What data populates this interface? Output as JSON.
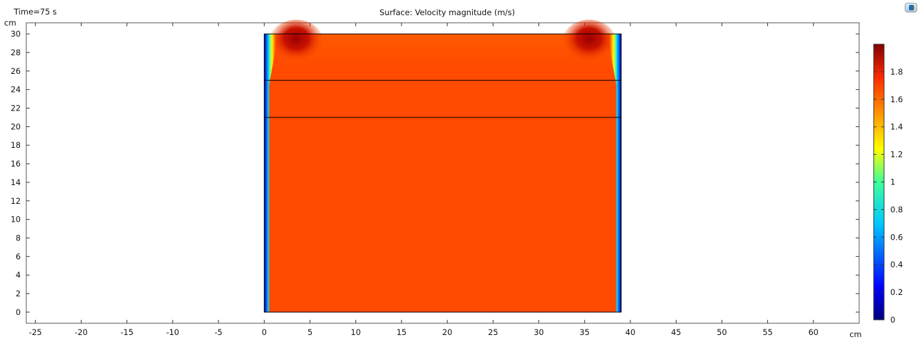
{
  "window": {
    "time_label": "Time=75 s",
    "corner_icon": "graphics-toolbar-icon"
  },
  "chart_data": {
    "type": "heatmap",
    "title": "Surface: Velocity magnitude (m/s)",
    "xlabel": "cm",
    "ylabel": "cm",
    "xlim": [
      -26,
      65
    ],
    "ylim": [
      -1.2,
      31.2
    ],
    "x_ticks": [
      -25,
      -20,
      -15,
      -10,
      -5,
      0,
      5,
      10,
      15,
      20,
      25,
      30,
      35,
      40,
      45,
      50,
      55,
      60
    ],
    "y_ticks": [
      0,
      2,
      4,
      6,
      8,
      10,
      12,
      14,
      16,
      18,
      20,
      22,
      24,
      26,
      28,
      30
    ],
    "domain": {
      "x_range": [
        0,
        39
      ],
      "y_range": [
        0,
        30
      ],
      "internal_boundaries_y": [
        21,
        25
      ]
    },
    "colorbar": {
      "min": 0,
      "max": 2.0,
      "ticks": [
        0,
        0.2,
        0.4,
        0.6,
        0.8,
        1,
        1.2,
        1.4,
        1.6,
        1.8
      ],
      "colormap": "rainbow"
    },
    "field_description": {
      "bulk_value": 1.65,
      "peak_value": 1.95,
      "peak_locations_xy": [
        [
          3.5,
          29
        ],
        [
          35.5,
          29
        ]
      ],
      "wall_value": 0.0
    },
    "grid": false
  }
}
